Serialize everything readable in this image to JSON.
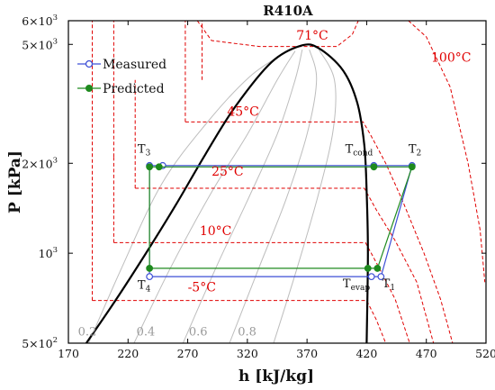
{
  "chart_data": {
    "type": "line",
    "title": "R410A",
    "xlabel": "h [kJ/kg]",
    "ylabel": "P [kPa]",
    "xlim": [
      170,
      520
    ],
    "ylim": [
      500,
      6000
    ],
    "yscale": "log",
    "x_ticks": [
      "170",
      "220",
      "270",
      "320",
      "370",
      "420",
      "470",
      "520"
    ],
    "y_ticks": [
      {
        "value": 500,
        "base": "5×10",
        "exp": "2"
      },
      {
        "value": 1000,
        "base": "10",
        "exp": "3"
      },
      {
        "value": 2000,
        "base": "2×10",
        "exp": "3"
      },
      {
        "value": 5000,
        "base": "5×10",
        "exp": "3"
      },
      {
        "value": 6000,
        "base": "6×10",
        "exp": "3"
      }
    ],
    "legend": {
      "position": "top-left",
      "entries": [
        "Measured",
        "Predicted"
      ]
    },
    "colors": {
      "measured": "#3d4fd6",
      "predicted": "#1e8a1e",
      "isotherm": "#e00000",
      "saturation": "#000000",
      "quality": "#bdbdbd"
    },
    "series": [
      {
        "name": "Measured",
        "points": [
          {
            "h": 238,
            "p": 1965
          },
          {
            "h": 249,
            "p": 1965
          },
          {
            "h": 426,
            "p": 1965
          },
          {
            "h": 458,
            "p": 1965
          },
          {
            "h": 432,
            "p": 835
          },
          {
            "h": 424,
            "p": 835
          },
          {
            "h": 238,
            "p": 835
          }
        ]
      },
      {
        "name": "Predicted",
        "points": [
          {
            "h": 238,
            "p": 1945
          },
          {
            "h": 246,
            "p": 1945
          },
          {
            "h": 426,
            "p": 1945
          },
          {
            "h": 458,
            "p": 1945
          },
          {
            "h": 429,
            "p": 890
          },
          {
            "h": 421,
            "p": 890
          },
          {
            "h": 238,
            "p": 890
          }
        ]
      }
    ],
    "saturation_dome": [
      [
        185,
        500
      ],
      [
        210,
        700
      ],
      [
        235,
        1000
      ],
      [
        260,
        1450
      ],
      [
        285,
        2150
      ],
      [
        310,
        3100
      ],
      [
        340,
        4350
      ],
      [
        365,
        4950
      ],
      [
        380,
        4850
      ],
      [
        400,
        4100
      ],
      [
        412,
        3200
      ],
      [
        418,
        2300
      ],
      [
        420,
        1600
      ],
      [
        421,
        1000
      ],
      [
        420,
        500
      ]
    ],
    "point_labels": [
      {
        "text": "T",
        "sub": "3",
        "h": 228,
        "p": 2170
      },
      {
        "text": "T",
        "sub": "cond",
        "h": 402,
        "p": 2170
      },
      {
        "text": "T",
        "sub": "2",
        "h": 455,
        "p": 2170
      },
      {
        "text": "T",
        "sub": "4",
        "h": 228,
        "p": 760
      },
      {
        "text": "T",
        "sub": "evap",
        "h": 400,
        "p": 770
      },
      {
        "text": "T",
        "sub": "1",
        "h": 433,
        "p": 770
      }
    ],
    "isotherms": [
      {
        "label": "71°C",
        "label_at": [
          361,
          5180
        ],
        "path": [
          [
            278,
            6000
          ],
          [
            290,
            5150
          ],
          [
            330,
            4920
          ],
          [
            365,
            4920
          ],
          [
            395,
            4920
          ],
          [
            408,
            5400
          ],
          [
            413,
            6000
          ]
        ]
      },
      {
        "label": "100°C",
        "label_at": [
          474,
          4380
        ],
        "path": [
          [
            455,
            6000
          ],
          [
            470,
            5300
          ],
          [
            490,
            3600
          ],
          [
            505,
            2000
          ],
          [
            515,
            1200
          ],
          [
            519,
            800
          ]
        ]
      },
      {
        "label": "45°C",
        "label_at": [
          303,
          2880
        ],
        "path": [
          [
            268,
            2750
          ],
          [
            417,
            2750
          ],
          [
            423,
            2500
          ],
          [
            436,
            2000
          ],
          [
            450,
            1500
          ],
          [
            468,
            1000
          ],
          [
            482,
            700
          ],
          [
            492,
            500
          ]
        ]
      },
      {
        "label": "25°C",
        "label_at": [
          290,
          1820
        ],
        "path": [
          [
            226,
            1650
          ],
          [
            418,
            1650
          ],
          [
            428,
            1400
          ],
          [
            444,
            1100
          ],
          [
            462,
            800
          ],
          [
            476,
            500
          ]
        ]
      },
      {
        "label": "10°C",
        "label_at": [
          280,
          1150
        ],
        "path": [
          [
            208,
            1085
          ],
          [
            419,
            1085
          ],
          [
            430,
            900
          ],
          [
            444,
            700
          ],
          [
            456,
            500
          ]
        ]
      },
      {
        "label": "-5°C",
        "label_at": [
          270,
          745
        ],
        "path": [
          [
            190,
            695
          ],
          [
            420,
            695
          ],
          [
            428,
            600
          ],
          [
            436,
            500
          ]
        ]
      }
    ],
    "extra_isotherm_verticals": [
      {
        "h": 208,
        "p_from": 2100,
        "p_to": 6000
      },
      {
        "h": 190,
        "p_from": 1400,
        "p_to": 6000
      },
      {
        "h": 282,
        "p_from": 3800,
        "p_to": 6000
      },
      {
        "h": 268,
        "p_from": 2750,
        "p_to": 6000
      },
      {
        "h": 226,
        "p_from": 1650,
        "p_to": 3800
      },
      {
        "h": 208,
        "p_from": 1085,
        "p_to": 2100
      },
      {
        "h": 190,
        "p_from": 695,
        "p_to": 1400
      }
    ],
    "quality_lines": [
      {
        "label": "0.2",
        "label_at": [
          178,
          530
        ],
        "path": [
          [
            187,
            500
          ],
          [
            215,
            900
          ],
          [
            248,
            1700
          ],
          [
            285,
            2700
          ],
          [
            322,
            3900
          ],
          [
            352,
            4700
          ]
        ]
      },
      {
        "label": "0.4",
        "label_at": [
          227,
          530
        ],
        "path": [
          [
            225,
            500
          ],
          [
            256,
            900
          ],
          [
            290,
            1600
          ],
          [
            320,
            2500
          ],
          [
            345,
            3800
          ],
          [
            360,
            4750
          ]
        ]
      },
      {
        "label": "0.6",
        "label_at": [
          271,
          530
        ],
        "path": [
          [
            266,
            500
          ],
          [
            294,
            900
          ],
          [
            320,
            1500
          ],
          [
            345,
            2500
          ],
          [
            360,
            3800
          ],
          [
            366,
            4800
          ]
        ]
      },
      {
        "label": "0.8",
        "label_at": [
          312,
          530
        ],
        "path": [
          [
            305,
            500
          ],
          [
            330,
            900
          ],
          [
            352,
            1500
          ],
          [
            370,
            2500
          ],
          [
            378,
            3800
          ],
          [
            372,
            4800
          ]
        ]
      },
      {
        "label": "",
        "label_at": [
          0,
          0
        ],
        "path": [
          [
            342,
            500
          ],
          [
            362,
            900
          ],
          [
            380,
            1600
          ],
          [
            392,
            2600
          ],
          [
            393,
            3800
          ],
          [
            380,
            4800
          ]
        ]
      }
    ]
  }
}
